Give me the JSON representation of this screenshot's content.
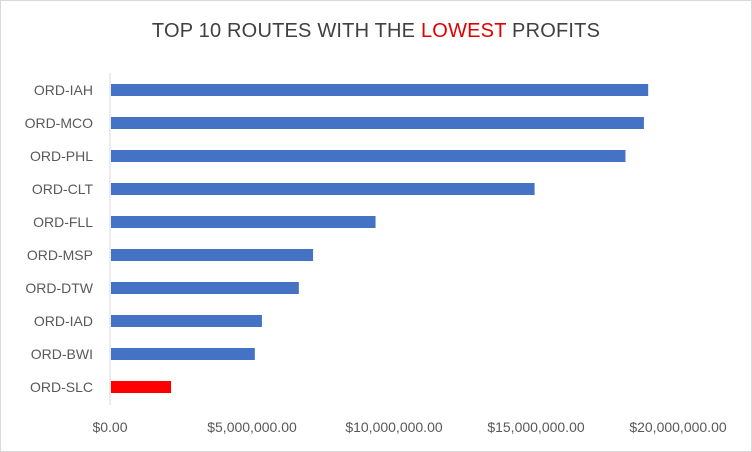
{
  "chart_data": {
    "type": "bar",
    "orientation": "horizontal",
    "title": {
      "before": "TOP 10 ROUTES WITH THE ",
      "highlight": "LOWEST",
      "after": " PROFITS"
    },
    "categories": [
      "ORD-IAH",
      "ORD-MCO",
      "ORD-PHL",
      "ORD-CLT",
      "ORD-FLL",
      "ORD-MSP",
      "ORD-DTW",
      "ORD-IAD",
      "ORD-BWI",
      "ORD-SLC"
    ],
    "values": [
      18950000,
      18800000,
      18150000,
      14950000,
      9350000,
      7150000,
      6650000,
      5350000,
      5100000,
      2150000
    ],
    "bar_colors": [
      "#4472c4",
      "#4472c4",
      "#4472c4",
      "#4472c4",
      "#4472c4",
      "#4472c4",
      "#4472c4",
      "#4472c4",
      "#4472c4",
      "#ff0000"
    ],
    "x_ticks": [
      0,
      5000000,
      10000000,
      15000000,
      20000000
    ],
    "x_tick_labels": [
      "$0.00",
      "$5,000,000.00",
      "$10,000,000.00",
      "$15,000,000.00",
      "$20,000,000.00"
    ],
    "xlim": [
      0,
      20000000
    ],
    "grid": false,
    "legend": "none",
    "colors": {
      "bar": "#4472c4",
      "highlight": "#ff0000",
      "text": "#595959",
      "title": "#404040",
      "title_highlight": "#e00000"
    }
  }
}
